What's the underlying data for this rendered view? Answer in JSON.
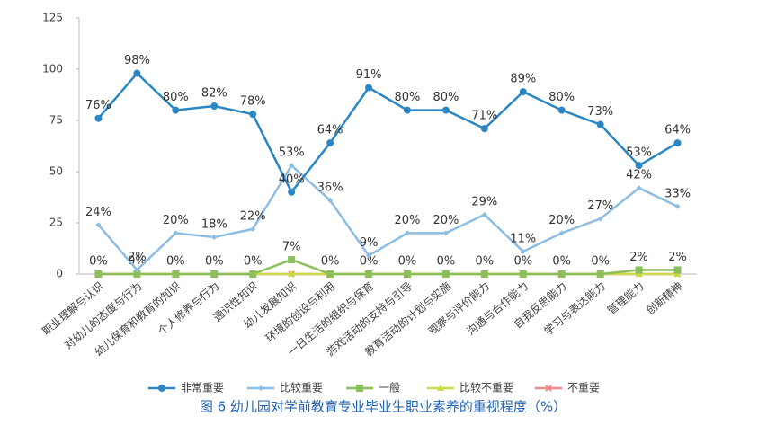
{
  "chart_data": {
    "type": "line",
    "caption": "图 6  幼儿园对学前教育专业毕业生职业素养的重视程度（%）",
    "categories": [
      "职业理解与认识",
      "对幼儿的态度与行为",
      "幼儿保育和教育的知识",
      "个人修养与行为",
      "通识性知识",
      "幼儿发展知识",
      "环境的创设与利用",
      "一日生活的组织与保育",
      "游戏活动的支持与引导",
      "教育活动的计划与实施",
      "观察与评价能力",
      "沟通与合作能力",
      "自我反思能力",
      "学习与表达能力",
      "管理能力",
      "创新精神"
    ],
    "series": [
      {
        "name": "非常重要",
        "color": "#2b86c5",
        "marker": "circle",
        "values": [
          76,
          98,
          80,
          82,
          78,
          40,
          64,
          91,
          80,
          80,
          71,
          89,
          80,
          73,
          53,
          64
        ],
        "value_labels": [
          "76%",
          "98%",
          "80%",
          "82%",
          "78%",
          "40%",
          "64%",
          "91%",
          "80%",
          "80%",
          "71%",
          "89%",
          "80%",
          "73%",
          "53%",
          "64%"
        ]
      },
      {
        "name": "比较重要",
        "color": "#8dbde2",
        "marker": "diamond",
        "values": [
          24,
          2,
          20,
          18,
          22,
          53,
          36,
          9,
          20,
          20,
          29,
          11,
          20,
          27,
          42,
          33
        ],
        "value_labels": [
          "24%",
          "2%",
          "20%",
          "18%",
          "22%",
          "53%",
          "36%",
          "9%",
          "20%",
          "20%",
          "29%",
          "11%",
          "20%",
          "27%",
          "42%",
          "33%"
        ]
      },
      {
        "name": "一般",
        "color": "#8cbf5a",
        "marker": "square",
        "values": [
          0,
          0,
          0,
          0,
          0,
          7,
          0,
          0,
          0,
          0,
          0,
          0,
          0,
          0,
          2,
          2
        ],
        "value_labels": [
          "0%",
          "0%",
          "0%",
          "0%",
          "0%",
          "7%",
          "0%",
          "0%",
          "0%",
          "0%",
          "0%",
          "0%",
          "0%",
          "0%",
          "2%",
          "2%"
        ]
      },
      {
        "name": "比较不重要",
        "color": "#c9d94a",
        "marker": "triangle",
        "values": [
          0,
          0,
          0,
          0,
          0,
          0,
          0,
          0,
          0,
          0,
          0,
          0,
          0,
          0,
          0,
          0
        ]
      },
      {
        "name": "不重要",
        "color": "#ef8a8a",
        "marker": "cross",
        "values": [
          0,
          0,
          0,
          0,
          0,
          0,
          0,
          0,
          0,
          0,
          0,
          0,
          0,
          0,
          0,
          0
        ]
      }
    ],
    "ylim": [
      0,
      125
    ],
    "yticks": [
      0,
      25,
      50,
      75,
      100,
      125
    ],
    "legend": "bottom"
  }
}
